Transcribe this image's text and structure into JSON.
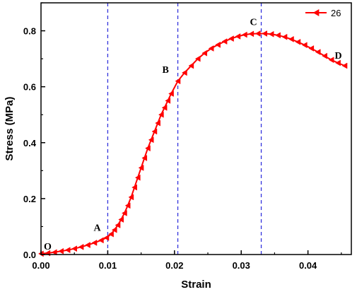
{
  "chart_data": {
    "type": "line",
    "xlabel": "Strain",
    "ylabel": "Stress (MPa)",
    "xlim": [
      0,
      0.0465
    ],
    "ylim": [
      0,
      0.9
    ],
    "xticks": [
      {
        "value": 0,
        "label": "0.00"
      },
      {
        "value": 0.01,
        "label": "0.01"
      },
      {
        "value": 0.02,
        "label": "0.02"
      },
      {
        "value": 0.03,
        "label": "0.03"
      },
      {
        "value": 0.04,
        "label": "0.04"
      }
    ],
    "yticks": [
      {
        "value": 0,
        "label": "0.0"
      },
      {
        "value": 0.2,
        "label": "0.2"
      },
      {
        "value": 0.4,
        "label": "0.4"
      },
      {
        "value": 0.6,
        "label": "0.6"
      },
      {
        "value": 0.8,
        "label": "0.8"
      }
    ],
    "grid": false,
    "legend_position": "top-right",
    "line_color": "#ff0000",
    "divider_color": "#3333dd",
    "series": [
      {
        "name": "26",
        "marker": "triangle-left",
        "x": [
          0,
          0.001,
          0.002,
          0.003,
          0.004,
          0.005,
          0.006,
          0.007,
          0.008,
          0.009,
          0.0098,
          0.0105,
          0.011,
          0.0115,
          0.012,
          0.0125,
          0.013,
          0.0135,
          0.014,
          0.0145,
          0.015,
          0.0155,
          0.016,
          0.0165,
          0.017,
          0.0175,
          0.018,
          0.0185,
          0.019,
          0.0195,
          0.0205,
          0.0215,
          0.0225,
          0.0235,
          0.0245,
          0.0255,
          0.0265,
          0.0275,
          0.0285,
          0.0295,
          0.0305,
          0.0315,
          0.0325,
          0.0335,
          0.0345,
          0.0355,
          0.0365,
          0.0375,
          0.0385,
          0.0395,
          0.0405,
          0.0415,
          0.0425,
          0.0435,
          0.0445,
          0.0455
        ],
        "y": [
          0.003,
          0.005,
          0.008,
          0.012,
          0.016,
          0.021,
          0.027,
          0.034,
          0.042,
          0.051,
          0.06,
          0.073,
          0.088,
          0.105,
          0.125,
          0.148,
          0.175,
          0.205,
          0.24,
          0.275,
          0.31,
          0.345,
          0.38,
          0.41,
          0.44,
          0.47,
          0.5,
          0.525,
          0.55,
          0.575,
          0.62,
          0.65,
          0.675,
          0.7,
          0.72,
          0.737,
          0.75,
          0.762,
          0.772,
          0.78,
          0.786,
          0.789,
          0.79,
          0.79,
          0.788,
          0.784,
          0.778,
          0.77,
          0.76,
          0.749,
          0.737,
          0.724,
          0.71,
          0.696,
          0.685,
          0.675
        ]
      }
    ],
    "dividers": [
      0.01,
      0.0205,
      0.033
    ],
    "annotations": [
      {
        "label": "O",
        "x": 0.0,
        "y": 0.003
      },
      {
        "label": "A",
        "x": 0.0098,
        "y": 0.06
      },
      {
        "label": "B",
        "x": 0.0205,
        "y": 0.62
      },
      {
        "label": "C",
        "x": 0.033,
        "y": 0.79
      },
      {
        "label": "D",
        "x": 0.0455,
        "y": 0.675
      }
    ]
  }
}
